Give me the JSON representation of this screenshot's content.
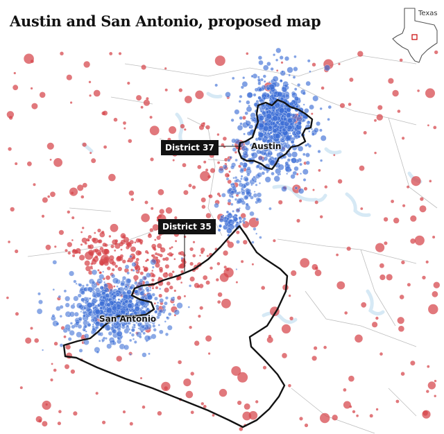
{
  "title": "Austin and San Antonio, proposed map",
  "inset": {
    "label": "Texas"
  },
  "districts": [
    {
      "label": "District 37"
    },
    {
      "label": "District 35"
    }
  ],
  "cities": [
    {
      "label": "Austin"
    },
    {
      "label": "San Antonio"
    }
  ],
  "colors": {
    "democratic_dots": "#3d6fd6",
    "republican_dots": "#d6444a",
    "district_outline": "#121212",
    "water": "#d6e9f5",
    "county_lines": "#bdbdbd"
  }
}
